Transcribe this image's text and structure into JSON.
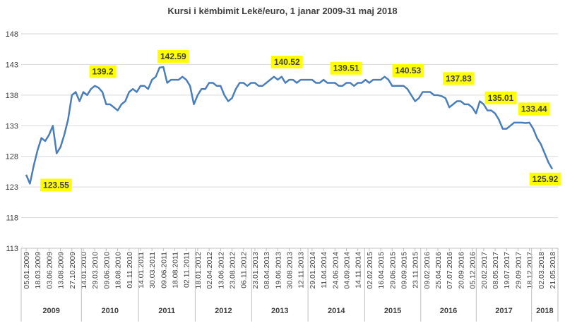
{
  "chart_data": {
    "type": "line",
    "title": "Kursi i këmbimit Lekë/euro, 1 janar 2009-31 maj 2018",
    "ylim": [
      113,
      148
    ],
    "yticks": [
      113,
      118,
      123,
      128,
      133,
      138,
      143,
      148
    ],
    "grid": true,
    "x_groups": [
      "2009",
      "2010",
      "2011",
      "2012",
      "2013",
      "2014",
      "2015",
      "2016",
      "2017",
      "2018"
    ],
    "categories": [
      "05.01.2009",
      null,
      null,
      "18.03.2009",
      null,
      null,
      "03.06.2009",
      null,
      null,
      "13.08.2009",
      null,
      null,
      "27.10.2009",
      null,
      null,
      "14.01.2010",
      null,
      null,
      "29.03.2010",
      null,
      null,
      "09.06.2010",
      null,
      null,
      "18.08.2010",
      null,
      null,
      "01.11.2010",
      null,
      null,
      "14.01.2011",
      null,
      null,
      "30.03.2011",
      null,
      null,
      "09.06.2011",
      null,
      null,
      "18.08.2011",
      null,
      null,
      "02.11.2011",
      null,
      null,
      "18.01.2012",
      null,
      null,
      "02.04.2012",
      null,
      null,
      "13.06.2012",
      null,
      null,
      "23.08.2012",
      null,
      null,
      "06.11.2012",
      null,
      null,
      "23.01.2013",
      null,
      null,
      "08.04.2013",
      null,
      null,
      "19.06.2013",
      null,
      null,
      "30.08.2013",
      null,
      null,
      "12.11.2013",
      null,
      null,
      "29.01.2014",
      null,
      null,
      "11.04.2014",
      null,
      null,
      "24.06.2014",
      null,
      null,
      "04.09.2014",
      null,
      null,
      "14.11.2014",
      null,
      null,
      "02.02.2015",
      null,
      null,
      "16.04.2015",
      null,
      null,
      "29.06.2015",
      null,
      null,
      "09.09.2015",
      null,
      null,
      "23.11.2015",
      null,
      null,
      "09.02.2016",
      null,
      null,
      "25.04.2016",
      null,
      null,
      "07.07.2016",
      null,
      null,
      "20.09.2016",
      null,
      null,
      "05.12.2016",
      null,
      null,
      "20.02.2017",
      null,
      null,
      "08.05.2017",
      null,
      null,
      "19.07.2017",
      null,
      null,
      "29.09.2017",
      null,
      null,
      "18.12.2017",
      null,
      null,
      "02.03.2018",
      null,
      null,
      "21.05.2018"
    ],
    "series": [
      {
        "name": "Kursi",
        "color": "#4a7ebb",
        "values": [
          125.0,
          123.55,
          126.5,
          129,
          131,
          130.5,
          131.5,
          133,
          128.5,
          129.5,
          131.5,
          134,
          138,
          138.5,
          137,
          138.5,
          138,
          139,
          139.5,
          139.2,
          138.5,
          136.5,
          136.5,
          136,
          135.5,
          136.5,
          137,
          138.5,
          139,
          138.5,
          139.5,
          139.5,
          139,
          140.5,
          141,
          142.5,
          142.59,
          140,
          140.5,
          140.5,
          140.5,
          141,
          140.5,
          139.5,
          136.5,
          138,
          139,
          139,
          140,
          140,
          139.5,
          139.5,
          138,
          137,
          137.5,
          139,
          140,
          140,
          139.5,
          140,
          140,
          139.5,
          139.5,
          140,
          140.5,
          141,
          140.52,
          141,
          140,
          140.5,
          140.5,
          140,
          140.5,
          140.5,
          140.5,
          140.5,
          140,
          140,
          140.5,
          140,
          140,
          140,
          139.5,
          139.51,
          140,
          140,
          139.5,
          140,
          140,
          140.5,
          140,
          140.5,
          140.5,
          140.5,
          141,
          140.53,
          139.5,
          139.5,
          139.5,
          139.5,
          139,
          138,
          137,
          137.5,
          138.5,
          138.5,
          138.5,
          138,
          138,
          137.83,
          137.5,
          136,
          136.5,
          137,
          137,
          136.5,
          136.5,
          136,
          135,
          137,
          136.5,
          135.5,
          135.5,
          135.01,
          134,
          132.5,
          132.5,
          133,
          133.5,
          133.5,
          133.5,
          133.44,
          133.5,
          132.5,
          131,
          130,
          128.5,
          127,
          125.92
        ],
        "value_labels": [
          null,
          "123.55",
          null,
          null,
          null,
          null,
          null,
          null,
          null,
          null,
          null,
          null,
          null,
          null,
          null,
          null,
          null,
          null,
          null,
          "139.2",
          null,
          null,
          null,
          null,
          null,
          null,
          null,
          null,
          null,
          null,
          null,
          null,
          null,
          null,
          null,
          null,
          "142.59",
          null,
          null,
          null,
          null,
          null,
          null,
          null,
          null,
          null,
          null,
          null,
          null,
          null,
          null,
          null,
          null,
          null,
          null,
          null,
          null,
          null,
          null,
          null,
          null,
          null,
          null,
          null,
          null,
          null,
          "140.52",
          null,
          null,
          null,
          null,
          null,
          null,
          null,
          null,
          null,
          null,
          null,
          null,
          null,
          null,
          null,
          null,
          "139.51",
          null,
          null,
          null,
          null,
          null,
          null,
          null,
          null,
          null,
          null,
          null,
          "140.53",
          null,
          null,
          null,
          null,
          null,
          null,
          null,
          null,
          null,
          null,
          null,
          null,
          null,
          "137.83",
          null,
          null,
          null,
          null,
          null,
          null,
          null,
          null,
          null,
          null,
          null,
          null,
          null,
          "135.01",
          null,
          null,
          null,
          null,
          null,
          null,
          null,
          "133.44",
          null,
          null,
          null,
          null,
          null,
          null,
          "125.92"
        ]
      }
    ]
  }
}
